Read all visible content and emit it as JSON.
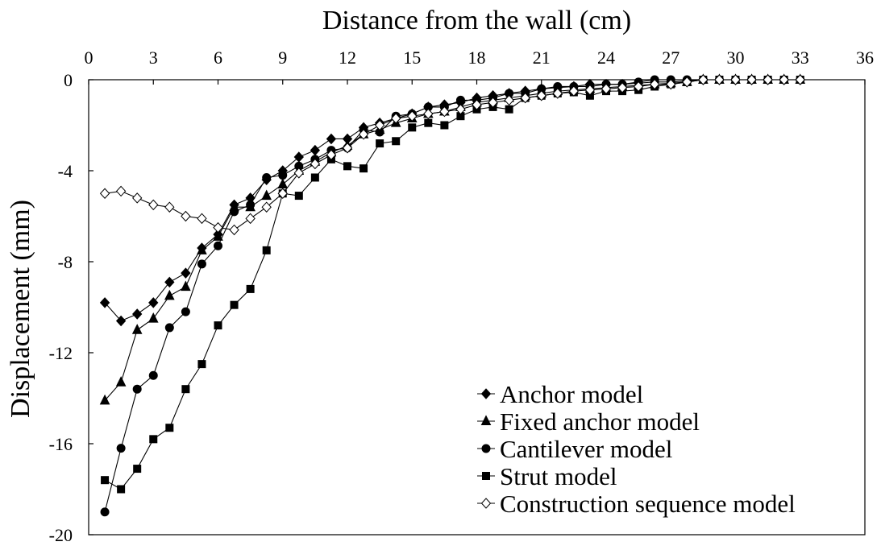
{
  "chart_data": {
    "type": "line",
    "title": "",
    "xlabel": "Distance from the wall (cm)",
    "ylabel": "Displacement (mm)",
    "xlim": [
      0,
      36
    ],
    "ylim": [
      -20,
      0
    ],
    "x_axis_position": "top",
    "x_ticks": [
      0,
      3,
      6,
      9,
      12,
      15,
      18,
      21,
      24,
      27,
      30,
      33,
      36
    ],
    "y_ticks": [
      0,
      -4,
      -8,
      -12,
      -16,
      -20
    ],
    "grid": false,
    "legend_position": "bottom-right",
    "x": [
      0.75,
      1.5,
      2.25,
      3.0,
      3.75,
      4.5,
      5.25,
      6.0,
      6.75,
      7.5,
      8.25,
      9.0,
      9.75,
      10.5,
      11.25,
      12.0,
      12.75,
      13.5,
      14.25,
      15.0,
      15.75,
      16.5,
      17.25,
      18.0,
      18.75,
      19.5,
      20.25,
      21.0,
      21.75,
      22.5,
      23.25,
      24.0,
      24.75,
      25.5,
      26.25,
      27.0,
      27.75,
      28.5,
      29.25,
      30.0,
      30.75,
      31.5,
      32.25,
      33.0
    ],
    "series": [
      {
        "name": "Anchor model",
        "marker": "diamond-filled",
        "values": [
          -9.8,
          -10.6,
          -10.3,
          -9.8,
          -8.9,
          -8.5,
          -7.4,
          -6.8,
          -5.5,
          -5.2,
          -4.4,
          -4.0,
          -3.4,
          -3.1,
          -2.6,
          -2.6,
          -2.1,
          -1.9,
          -1.7,
          -1.5,
          -1.2,
          -1.1,
          -1.0,
          -0.8,
          -0.7,
          -0.6,
          -0.5,
          -0.4,
          -0.35,
          -0.3,
          -0.2,
          -0.2,
          -0.2,
          -0.15,
          -0.1,
          -0.1,
          -0.05,
          0,
          0,
          0,
          0,
          0,
          0,
          0
        ]
      },
      {
        "name": "Fixed anchor model",
        "marker": "triangle-filled",
        "values": [
          -14.1,
          -13.3,
          -11.0,
          -10.5,
          -9.5,
          -9.1,
          -7.5,
          -6.9,
          -5.6,
          -5.6,
          -5.1,
          -4.6,
          -4.0,
          -3.6,
          -3.2,
          -2.9,
          -2.4,
          -2.2,
          -1.9,
          -1.7,
          -1.5,
          -1.4,
          -1.2,
          -1.0,
          -0.9,
          -0.8,
          -0.7,
          -0.6,
          -0.5,
          -0.45,
          -0.4,
          -0.35,
          -0.3,
          -0.25,
          -0.2,
          -0.15,
          -0.1,
          0,
          0,
          0,
          0,
          0,
          0,
          0
        ]
      },
      {
        "name": "Cantilever model",
        "marker": "circle-filled",
        "values": [
          -19.0,
          -16.2,
          -13.6,
          -13.0,
          -10.9,
          -10.2,
          -8.1,
          -7.3,
          -5.8,
          -5.5,
          -4.3,
          -4.2,
          -3.8,
          -3.5,
          -3.1,
          -3.0,
          -2.2,
          -2.3,
          -1.6,
          -1.5,
          -1.2,
          -1.2,
          -0.9,
          -0.9,
          -0.8,
          -0.6,
          -0.6,
          -0.4,
          -0.3,
          -0.3,
          -0.3,
          -0.2,
          -0.2,
          -0.1,
          0,
          0,
          0,
          0,
          0,
          0,
          0,
          0,
          0,
          0
        ]
      },
      {
        "name": "Strut model",
        "marker": "square-filled",
        "values": [
          -17.6,
          -18.0,
          -17.1,
          -15.8,
          -15.3,
          -13.6,
          -12.5,
          -10.8,
          -9.9,
          -9.2,
          -7.5,
          -5.0,
          -5.1,
          -4.3,
          -3.5,
          -3.8,
          -3.9,
          -2.8,
          -2.7,
          -2.1,
          -1.9,
          -2.0,
          -1.6,
          -1.3,
          -1.2,
          -1.3,
          -0.8,
          -0.7,
          -0.6,
          -0.55,
          -0.7,
          -0.5,
          -0.5,
          -0.45,
          -0.3,
          -0.2,
          -0.1,
          0,
          0,
          0,
          0,
          0,
          0,
          0
        ]
      },
      {
        "name": "Construction sequence model",
        "marker": "diamond-open",
        "values": [
          -5.0,
          -4.9,
          -5.2,
          -5.5,
          -5.6,
          -6.0,
          -6.1,
          -6.5,
          -6.6,
          -6.1,
          -5.6,
          -5.0,
          -4.1,
          -3.7,
          -3.3,
          -3.0,
          -2.4,
          -2.0,
          -1.7,
          -1.6,
          -1.5,
          -1.4,
          -1.3,
          -1.1,
          -1.0,
          -0.9,
          -0.8,
          -0.7,
          -0.6,
          -0.5,
          -0.45,
          -0.4,
          -0.35,
          -0.3,
          -0.2,
          -0.2,
          -0.1,
          0,
          0,
          0,
          0,
          0,
          0,
          0
        ]
      }
    ]
  }
}
